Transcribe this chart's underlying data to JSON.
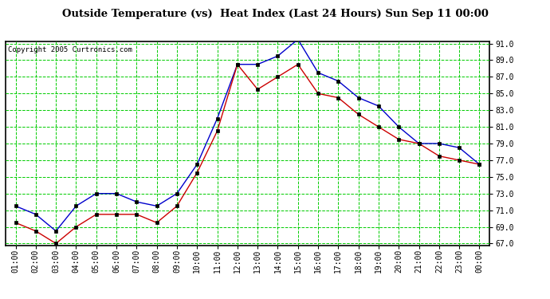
{
  "title": "Outside Temperature (vs)  Heat Index (Last 24 Hours) Sun Sep 11 00:00",
  "copyright": "Copyright 2005 Curtronics.com",
  "x_labels": [
    "01:00",
    "02:00",
    "03:00",
    "04:00",
    "05:00",
    "06:00",
    "07:00",
    "08:00",
    "09:00",
    "10:00",
    "11:00",
    "12:00",
    "13:00",
    "14:00",
    "15:00",
    "16:00",
    "17:00",
    "18:00",
    "19:00",
    "20:00",
    "21:00",
    "22:00",
    "23:00",
    "00:00"
  ],
  "blue_data": [
    71.5,
    70.5,
    68.5,
    71.5,
    73.0,
    73.0,
    72.0,
    71.5,
    73.0,
    76.5,
    82.0,
    88.5,
    88.5,
    89.5,
    91.5,
    87.5,
    86.5,
    84.5,
    83.5,
    81.0,
    79.0,
    79.0,
    78.5,
    76.5
  ],
  "red_data": [
    69.5,
    68.5,
    67.0,
    69.0,
    70.5,
    70.5,
    70.5,
    69.5,
    71.5,
    75.5,
    80.5,
    88.5,
    85.5,
    87.0,
    88.5,
    85.0,
    84.5,
    82.5,
    81.0,
    79.5,
    79.0,
    77.5,
    77.0,
    76.5
  ],
  "ylim": [
    67.0,
    91.0
  ],
  "yticks": [
    67.0,
    69.0,
    71.0,
    73.0,
    75.0,
    77.0,
    79.0,
    81.0,
    83.0,
    85.0,
    87.0,
    89.0,
    91.0
  ],
  "blue_color": "#0000cc",
  "red_color": "#cc0000",
  "bg_color": "#ffffff",
  "plot_bg_color": "#ffffff",
  "grid_color": "#00cc00",
  "title_fontsize": 9.5,
  "copyright_fontsize": 6.5,
  "tick_fontsize": 7,
  "marker_size": 3
}
